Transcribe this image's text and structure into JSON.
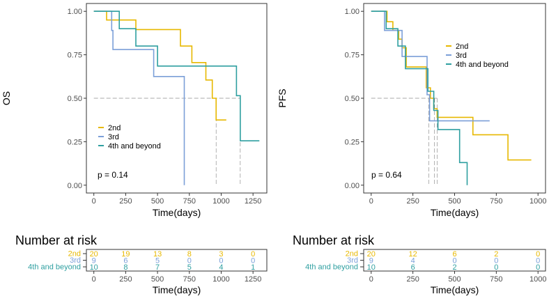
{
  "colors": {
    "2nd": "#E7B800",
    "3rd": "#7B9FD8",
    "4th and beyond": "#2E9FA0"
  },
  "chart_data": [
    {
      "type": "line",
      "subtype": "kaplan-meier",
      "ylabel": "OS",
      "xlabel": "Time(days)",
      "xlim": [
        0,
        1300
      ],
      "ylim": [
        0,
        1
      ],
      "xticks": [
        0,
        250,
        500,
        750,
        1000,
        1250
      ],
      "xtick_labels": [
        "0",
        "250",
        "500",
        "750",
        "1000",
        "1250"
      ],
      "yticks": [
        0,
        0.25,
        0.5,
        0.75,
        1.0
      ],
      "ytick_labels": [
        "0.00",
        "0.25",
        "0.50",
        "0.75",
        "1.00"
      ],
      "pvalue": "p = 0.14",
      "legend_position": "middle-left",
      "series": [
        {
          "name": "2nd",
          "steps": [
            [
              0,
              1
            ],
            [
              100,
              1
            ],
            [
              100,
              0.95
            ],
            [
              330,
              0.95
            ],
            [
              330,
              0.895
            ],
            [
              680,
              0.895
            ],
            [
              680,
              0.8
            ],
            [
              770,
              0.8
            ],
            [
              770,
              0.705
            ],
            [
              880,
              0.705
            ],
            [
              880,
              0.605
            ],
            [
              930,
              0.605
            ],
            [
              930,
              0.5
            ],
            [
              960,
              0.5
            ],
            [
              960,
              0.375
            ],
            [
              1040,
              0.375
            ]
          ]
        },
        {
          "name": "3rd",
          "steps": [
            [
              0,
              1
            ],
            [
              140,
              1
            ],
            [
              140,
              0.89
            ],
            [
              150,
              0.89
            ],
            [
              150,
              0.78
            ],
            [
              470,
              0.78
            ],
            [
              470,
              0.625
            ],
            [
              710,
              0.625
            ],
            [
              710,
              0.0
            ]
          ]
        },
        {
          "name": "4th and beyond",
          "steps": [
            [
              0,
              1
            ],
            [
              200,
              1
            ],
            [
              200,
              0.9
            ],
            [
              330,
              0.9
            ],
            [
              330,
              0.8
            ],
            [
              500,
              0.8
            ],
            [
              500,
              0.685
            ],
            [
              1120,
              0.685
            ],
            [
              1120,
              0.515
            ],
            [
              1150,
              0.515
            ],
            [
              1150,
              0.255
            ],
            [
              1300,
              0.255
            ]
          ]
        }
      ],
      "median_lines": [
        960,
        710,
        1150
      ],
      "risk_table": {
        "title": "Number at risk",
        "xlabel": "Time(days)",
        "rows": [
          {
            "name": "2nd",
            "values": [
              "20",
              "19",
              "13",
              "8",
              "3",
              "0"
            ]
          },
          {
            "name": "3rd",
            "values": [
              "9",
              "6",
              "5",
              "0",
              "0",
              "0"
            ]
          },
          {
            "name": "4th and beyond",
            "values": [
              "10",
              "8",
              "7",
              "5",
              "4",
              "1"
            ]
          }
        ]
      }
    },
    {
      "type": "line",
      "subtype": "kaplan-meier",
      "ylabel": "PFS",
      "xlabel": "Time(days)",
      "xlim": [
        0,
        1000
      ],
      "ylim": [
        0,
        1
      ],
      "xticks": [
        0,
        250,
        500,
        750,
        1000
      ],
      "xtick_labels": [
        "0",
        "250",
        "500",
        "750",
        "1000"
      ],
      "yticks": [
        0,
        0.25,
        0.5,
        0.75,
        1.0
      ],
      "ytick_labels": [
        "0.00",
        "0.25",
        "0.50",
        "0.75",
        "1.00"
      ],
      "pvalue": "p = 0.64",
      "legend_position": "top-right",
      "series": [
        {
          "name": "2nd",
          "steps": [
            [
              0,
              1
            ],
            [
              95,
              1
            ],
            [
              95,
              0.94
            ],
            [
              130,
              0.94
            ],
            [
              130,
              0.89
            ],
            [
              165,
              0.89
            ],
            [
              165,
              0.84
            ],
            [
              185,
              0.84
            ],
            [
              185,
              0.79
            ],
            [
              210,
              0.79
            ],
            [
              210,
              0.68
            ],
            [
              330,
              0.68
            ],
            [
              330,
              0.56
            ],
            [
              355,
              0.56
            ],
            [
              355,
              0.5
            ],
            [
              375,
              0.5
            ],
            [
              375,
              0.44
            ],
            [
              395,
              0.44
            ],
            [
              395,
              0.39
            ],
            [
              610,
              0.39
            ],
            [
              610,
              0.29
            ],
            [
              820,
              0.29
            ],
            [
              820,
              0.145
            ],
            [
              960,
              0.145
            ]
          ]
        },
        {
          "name": "3rd",
          "steps": [
            [
              0,
              1
            ],
            [
              80,
              1
            ],
            [
              80,
              0.89
            ],
            [
              185,
              0.89
            ],
            [
              185,
              0.74
            ],
            [
              335,
              0.74
            ],
            [
              335,
              0.52
            ],
            [
              350,
              0.52
            ],
            [
              350,
              0.37
            ],
            [
              710,
              0.37
            ]
          ]
        },
        {
          "name": "4th and beyond",
          "steps": [
            [
              0,
              1
            ],
            [
              90,
              1
            ],
            [
              90,
              0.9
            ],
            [
              160,
              0.9
            ],
            [
              160,
              0.8
            ],
            [
              205,
              0.8
            ],
            [
              205,
              0.67
            ],
            [
              340,
              0.67
            ],
            [
              340,
              0.54
            ],
            [
              375,
              0.54
            ],
            [
              375,
              0.43
            ],
            [
              400,
              0.43
            ],
            [
              400,
              0.32
            ],
            [
              530,
              0.32
            ],
            [
              530,
              0.13
            ],
            [
              575,
              0.13
            ],
            [
              575,
              0.0
            ]
          ]
        }
      ],
      "median_lines": [
        380,
        345,
        395
      ],
      "risk_table": {
        "title": "Number at risk",
        "xlabel": "Time(days)",
        "rows": [
          {
            "name": "2nd",
            "values": [
              "20",
              "12",
              "6",
              "2",
              "0"
            ]
          },
          {
            "name": "3rd",
            "values": [
              "9",
              "4",
              "0",
              "0",
              "0"
            ]
          },
          {
            "name": "4th and beyond",
            "values": [
              "10",
              "6",
              "2",
              "0",
              "0"
            ]
          }
        ]
      }
    }
  ]
}
